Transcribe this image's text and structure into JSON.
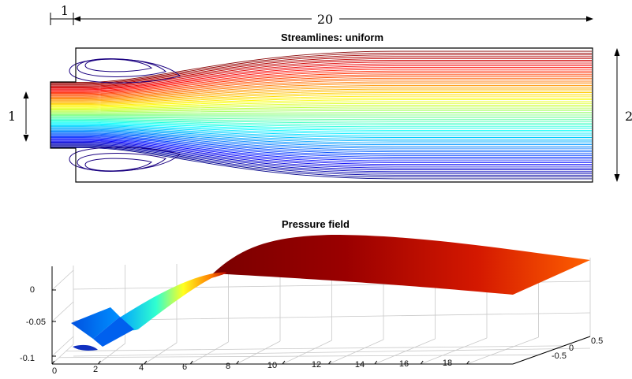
{
  "domain": "Diagram",
  "channel_diagram": {
    "title": "Streamlines: uniform",
    "dimensions": {
      "inlet_step_length": "1",
      "channel_length": "20",
      "inlet_height": "1",
      "channel_height": "2"
    },
    "streamline_colormap": "jet",
    "recirculation_zones": 2
  },
  "pressure_plot": {
    "title": "Pressure field",
    "x_ticks": [
      "0",
      "2",
      "4",
      "6",
      "8",
      "10",
      "12",
      "14",
      "16",
      "18"
    ],
    "y_ticks": [
      "0.5",
      "0",
      "-0.5"
    ],
    "z_ticks": [
      "0",
      "-0.05",
      "-0.1"
    ],
    "colormap": "jet",
    "grid": true
  }
}
